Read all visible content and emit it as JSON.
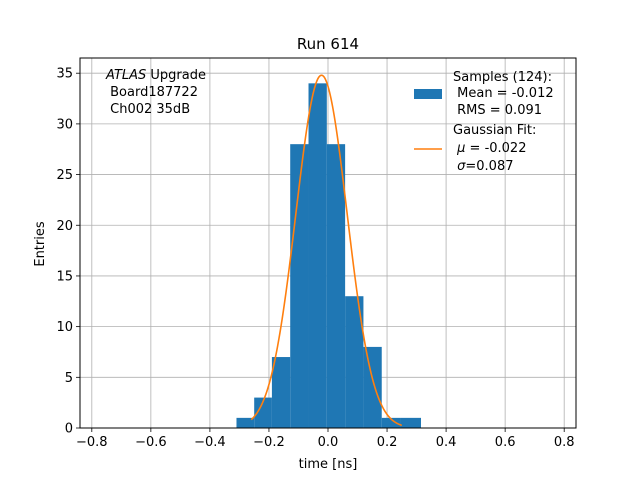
{
  "chart_data": {
    "type": "bar",
    "title": "Run 614",
    "xlabel": "time [ns]",
    "ylabel": "Entries",
    "xlim": [
      -0.84,
      0.84
    ],
    "ylim": [
      0,
      36.5
    ],
    "grid": true,
    "xticks": [
      -0.8,
      -0.6,
      -0.4,
      -0.2,
      0.0,
      0.2,
      0.4,
      0.6,
      0.8
    ],
    "xtick_labels": [
      "−0.8",
      "−0.6",
      "−0.4",
      "−0.2",
      "0.0",
      "0.2",
      "0.4",
      "0.6",
      "0.8"
    ],
    "yticks": [
      0,
      5,
      10,
      15,
      20,
      25,
      30,
      35
    ],
    "ytick_labels": [
      "0",
      "5",
      "10",
      "15",
      "20",
      "25",
      "30",
      "35"
    ],
    "histogram": {
      "name": "Samples (124):",
      "color": "#1f77b4",
      "bin_edges": [
        -0.31,
        -0.25,
        -0.19,
        -0.128,
        -0.066,
        -0.004,
        0.058,
        0.12,
        0.182,
        0.244,
        0.315
      ],
      "counts": [
        1,
        3,
        7,
        28,
        34,
        28,
        13,
        8,
        1,
        1
      ]
    },
    "fit": {
      "name": "Gaussian Fit:",
      "color": "#ff7f0e",
      "amplitude": 34.8,
      "mu": -0.022,
      "sigma": 0.087,
      "x_range": [
        -0.26,
        0.25
      ]
    },
    "legend": {
      "placement": "top-right",
      "samples_title": "Samples (124):",
      "samples_mean": " Mean = -0.012",
      "samples_rms": " RMS = 0.091",
      "fit_title": "Gaussian Fit:",
      "fit_mu_value": " = -0.022",
      "fit_sigma_value": "=0.087"
    },
    "annotation": {
      "experiment": "ATLAS",
      "experiment_suffix": " Upgrade",
      "board": " Board187722",
      "channel": " Ch002 35dB"
    }
  }
}
